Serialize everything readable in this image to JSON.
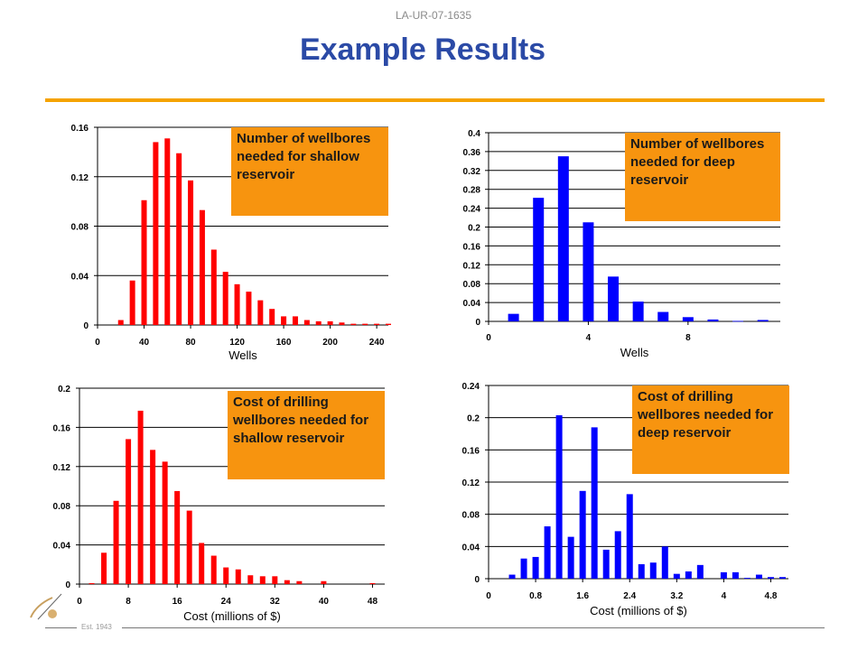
{
  "doc_id": "LA-UR-07-1635",
  "title": "Example Results",
  "est_text": "Est. 1943",
  "colors": {
    "accent": "#f5a300",
    "title": "#2b4aa6",
    "red_series": "#ff0000",
    "blue_series": "#0000ff",
    "callout": "#f7940f"
  },
  "chart_data": [
    {
      "type": "bar",
      "title": "",
      "callout": "Number of wellbores needed for shallow reservoir",
      "xlabel": "Wells",
      "ylabel": "",
      "color": "#ff0000",
      "x": [
        20,
        30,
        40,
        50,
        60,
        70,
        80,
        90,
        100,
        110,
        120,
        130,
        140,
        150,
        160,
        170,
        180,
        190,
        200,
        210,
        220,
        230,
        240,
        250
      ],
      "values": [
        0.004,
        0.036,
        0.101,
        0.148,
        0.151,
        0.139,
        0.117,
        0.093,
        0.061,
        0.043,
        0.033,
        0.027,
        0.02,
        0.013,
        0.007,
        0.007,
        0.004,
        0.003,
        0.003,
        0.002,
        0.001,
        0.001,
        0.001,
        0.001
      ],
      "xlim": [
        0,
        250
      ],
      "ylim": [
        0,
        0.16
      ],
      "xticks": [
        "0",
        "40",
        "80",
        "120",
        "160",
        "200",
        "240"
      ],
      "yticks": [
        "0",
        "0.04",
        "0.08",
        "0.12",
        "0.16"
      ],
      "grid": true
    },
    {
      "type": "bar",
      "title": "",
      "callout": "Number of wellbores needed for deep reservoir",
      "xlabel": "Wells",
      "ylabel": "",
      "color": "#0000ff",
      "x": [
        1,
        2,
        3,
        4,
        5,
        6,
        7,
        8,
        9,
        10,
        11
      ],
      "values": [
        0.016,
        0.262,
        0.35,
        0.21,
        0.095,
        0.042,
        0.02,
        0.009,
        0.004,
        0.001,
        0.003
      ],
      "xlim": [
        0,
        11.7
      ],
      "ylim": [
        0,
        0.4
      ],
      "xticks": [
        "0",
        "4",
        "8"
      ],
      "yticks": [
        "0",
        "0.04",
        "0.08",
        "0.12",
        "0.16",
        "0.2",
        "0.24",
        "0.28",
        "0.32",
        "0.36",
        "0.4"
      ],
      "grid": true
    },
    {
      "type": "bar",
      "title": "",
      "callout": "Cost of drilling wellbores needed for shallow reservoir",
      "xlabel": "Cost (millions of $)",
      "ylabel": "",
      "color": "#ff0000",
      "x": [
        2,
        4,
        6,
        8,
        10,
        12,
        14,
        16,
        18,
        20,
        22,
        24,
        26,
        28,
        30,
        32,
        34,
        36,
        40,
        48
      ],
      "values": [
        0.001,
        0.032,
        0.085,
        0.148,
        0.177,
        0.137,
        0.125,
        0.095,
        0.075,
        0.042,
        0.029,
        0.017,
        0.015,
        0.009,
        0.008,
        0.008,
        0.004,
        0.003,
        0.003,
        0.001
      ],
      "xlim": [
        0,
        50
      ],
      "ylim": [
        0,
        0.2
      ],
      "xticks": [
        "0",
        "8",
        "16",
        "24",
        "32",
        "40",
        "48"
      ],
      "yticks": [
        "0",
        "0.04",
        "0.08",
        "0.12",
        "0.16",
        "0.2"
      ],
      "grid": true
    },
    {
      "type": "bar",
      "title": "",
      "callout": "Cost of drilling wellbores needed for deep reservoir",
      "xlabel": "Cost (millions of $)",
      "ylabel": "",
      "color": "#0000ff",
      "x": [
        0.4,
        0.6,
        0.8,
        1.0,
        1.2,
        1.4,
        1.6,
        1.8,
        2.0,
        2.2,
        2.4,
        2.6,
        2.8,
        3.0,
        3.2,
        3.4,
        3.6,
        4.0,
        4.2,
        4.4,
        4.6,
        4.8,
        5.0
      ],
      "values": [
        0.005,
        0.025,
        0.027,
        0.065,
        0.203,
        0.052,
        0.109,
        0.188,
        0.036,
        0.059,
        0.105,
        0.018,
        0.02,
        0.04,
        0.006,
        0.009,
        0.017,
        0.008,
        0.008,
        0.001,
        0.005,
        0.002,
        0.002
      ],
      "xlim": [
        0,
        5.1
      ],
      "ylim": [
        0,
        0.24
      ],
      "xticks": [
        "0",
        "0.8",
        "1.6",
        "2.4",
        "3.2",
        "4",
        "4.8"
      ],
      "yticks": [
        "0",
        "0.04",
        "0.08",
        "0.12",
        "0.16",
        "0.2",
        "0.24"
      ],
      "grid": true
    }
  ]
}
